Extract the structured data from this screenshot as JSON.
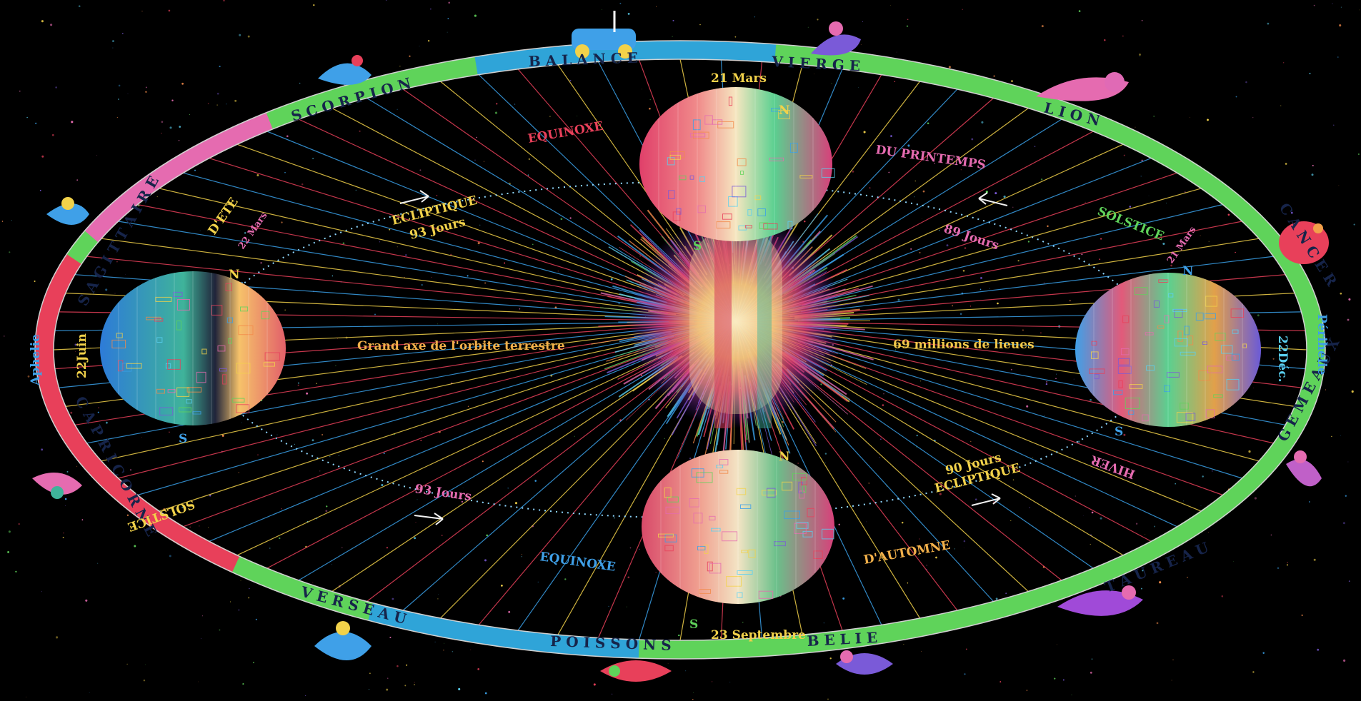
{
  "colors": {
    "background": "#000000",
    "ring_green": "#5fd35a",
    "ring_blue": "#2fa4d8",
    "ring_red": "#e8405a",
    "ring_pink": "#e56bb0",
    "ray_yellow": "#f2d24a",
    "ray_blue": "#3aa0e8",
    "orbit_dots": "#8fd7ff"
  },
  "zodiac_ring": {
    "top": [
      "B A L A N C E",
      "V I E R G E"
    ],
    "top_right": "L I O N",
    "right": [
      "C A N C E R",
      "G E M E A U X"
    ],
    "bottom_right": "T A U R E A U",
    "bottom": [
      "P O I S S O N S",
      "B E L I E"
    ],
    "bottom_left": "V E R S E A U",
    "left": [
      "C A P R I C O R N E",
      "S A G I T T A I R E"
    ],
    "top_left": "S C O R P I O N"
  },
  "labels": {
    "major_axis_left": "Grand axe de l'orbite terrestre",
    "major_axis_right": "69 millions de lieues",
    "aphelie": "Aphelie",
    "perihelie": "Périhelie",
    "date_june": "22Juin",
    "date_dec": "22Déc.",
    "date_march": "21 Mars",
    "date_sept": "23 Septembre",
    "equinoxe_top": "EQUINOXE",
    "printemps": "DU PRINTEMPS",
    "equinoxe_bottom": "EQUINOXE",
    "automne": "D'AUTOMNE",
    "solstice_left": "SOLSTICE",
    "ete": "D'ETE",
    "solstice_right": "SOLSTICE",
    "hiver": "HIVER",
    "ecliptique_left": "ECLIPTIQUE",
    "days_93": "93 Jours",
    "days_89": "89 Jours",
    "days_93b": "93 Jours",
    "ecliptique_right": "ECLIPTIQUE",
    "days_90": "90 Jours",
    "n_top": "N",
    "s_top": "S",
    "n_bottom": "N",
    "s_bottom": "S",
    "n_left": "N",
    "s_left": "S",
    "n_right": "N",
    "s_right": "S",
    "note_left": "22 Mars",
    "note_right": "21 Mars"
  }
}
